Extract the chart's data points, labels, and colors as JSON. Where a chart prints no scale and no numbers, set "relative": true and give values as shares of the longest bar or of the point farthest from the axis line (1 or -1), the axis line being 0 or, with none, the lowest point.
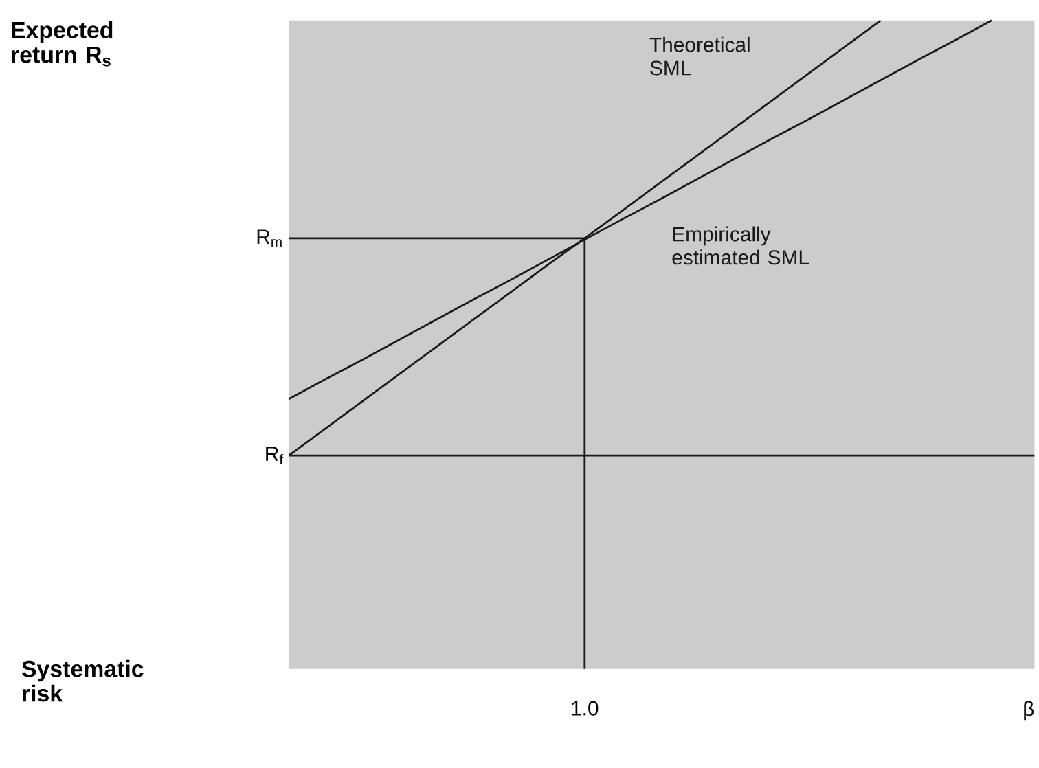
{
  "chart_data": {
    "type": "line",
    "relative": true,
    "categories": [
      null,
      null,
      null,
      null,
      null,
      null,
      null,
      null,
      "1.0",
      null,
      null,
      null,
      null,
      null,
      null,
      null,
      null,
      null,
      null,
      null,
      "β"
    ],
    "series": [
      {
        "name": "Theoretical SML",
        "color": "#1a1a1a",
        "values": [
          0.329,
          0.371,
          0.413,
          0.455,
          0.497,
          0.539,
          0.581,
          0.623,
          0.664,
          0.706,
          0.748,
          0.79,
          0.832,
          0.874,
          0.916,
          0.958,
          1,
          null,
          null,
          null,
          null
        ]
      },
      {
        "name": "Empirically estimated SML",
        "color": "#1a1a1a",
        "values": [
          0.416,
          0.447,
          0.477,
          0.508,
          0.539,
          0.57,
          0.6,
          0.631,
          0.662,
          0.693,
          0.723,
          0.754,
          0.785,
          0.816,
          0.846,
          0.877,
          0.908,
          0.939,
          0.969,
          1,
          null
        ]
      },
      {
        "name": "R$_{m}$",
        "color": "#1a1a1a",
        "values": [
          0.664,
          0.664,
          0.664,
          0.664,
          0.664,
          0.664,
          0.664,
          0.664,
          0.664,
          null,
          null,
          null,
          null,
          null,
          null,
          null,
          null,
          null,
          null,
          null,
          null
        ]
      }
    ],
    "ref_lines": [
      {
        "axis": "y",
        "value": 0.329,
        "label": "R$_{f}$",
        "color": "#1a1a1a"
      },
      {
        "axis": "x",
        "value": "1.0",
        "color": "#1a1a1a"
      }
    ],
    "annotations": [
      "Expected return R$_{s}$",
      "Systematic risk"
    ],
    "marker": "none",
    "line_style": "solid"
  }
}
